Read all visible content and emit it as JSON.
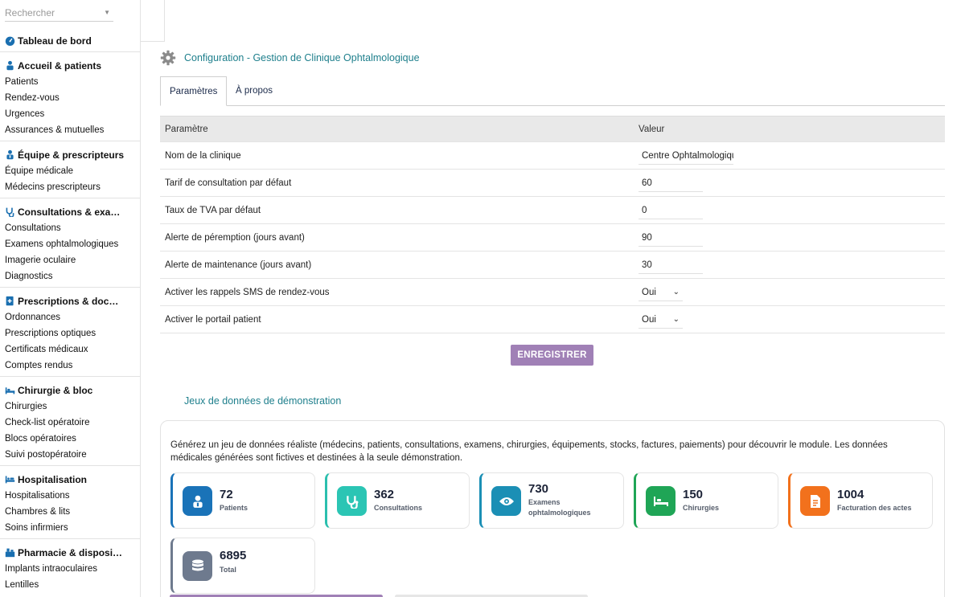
{
  "sidebar": {
    "search_placeholder": "Rechercher",
    "dashboard": "Tableau de bord",
    "sections": [
      {
        "title": "Accueil & patients",
        "items": [
          "Patients",
          "Rendez-vous",
          "Urgences",
          "Assurances & mutuelles"
        ]
      },
      {
        "title": "Équipe & prescripteurs",
        "items": [
          "Équipe médicale",
          "Médecins prescripteurs"
        ]
      },
      {
        "title": "Consultations & exa…",
        "items": [
          "Consultations",
          "Examens ophtalmologiques",
          "Imagerie oculaire",
          "Diagnostics"
        ]
      },
      {
        "title": "Prescriptions & doc…",
        "items": [
          "Ordonnances",
          "Prescriptions optiques",
          "Certificats médicaux",
          "Comptes rendus"
        ]
      },
      {
        "title": "Chirurgie & bloc",
        "items": [
          "Chirurgies",
          "Check-list opératoire",
          "Blocs opératoires",
          "Suivi postopératoire"
        ]
      },
      {
        "title": "Hospitalisation",
        "items": [
          "Hospitalisations",
          "Chambres & lits",
          "Soins infirmiers"
        ]
      },
      {
        "title": "Pharmacie & disposi…",
        "items": [
          "Implants intraoculaires",
          "Lentilles"
        ]
      }
    ]
  },
  "page": {
    "title": "Configuration - Gestion de Clinique Ophtalmologique",
    "tabs": [
      "Paramètres",
      "À propos"
    ]
  },
  "params": {
    "header": {
      "param": "Paramètre",
      "value": "Valeur"
    },
    "rows": [
      {
        "label": "Nom de la clinique",
        "value": "Centre Ophtalmologique"
      },
      {
        "label": "Tarif de consultation par défaut",
        "value": "60"
      },
      {
        "label": "Taux de TVA par défaut",
        "value": "0"
      },
      {
        "label": "Alerte de péremption (jours avant)",
        "value": "90"
      },
      {
        "label": "Alerte de maintenance (jours avant)",
        "value": "30"
      },
      {
        "label": "Activer les rappels SMS de rendez-vous",
        "value": "Oui"
      },
      {
        "label": "Activer le portail patient",
        "value": "Oui"
      }
    ],
    "save_label": "ENREGISTRER"
  },
  "demo": {
    "title": "Jeux de données de démonstration",
    "description": "Générez un jeu de données réaliste (médecins, patients, consultations, examens, chirurgies, équipements, stocks, factures, paiements) pour découvrir le module. Les données médicales générées sont fictives et destinées à la seule démonstration.",
    "stats": [
      {
        "value": "72",
        "label": "Patients",
        "icon": "patient-icon",
        "color": "#1a73b8"
      },
      {
        "value": "362",
        "label": "Consultations",
        "icon": "stethoscope-icon",
        "color": "#2bbfae"
      },
      {
        "value": "730",
        "label": "Examens ophtalmologiques",
        "icon": "eye-icon",
        "color": "#1b8fb5"
      },
      {
        "value": "150",
        "label": "Chirurgies",
        "icon": "bed-icon",
        "color": "#1fa556"
      },
      {
        "value": "1004",
        "label": "Facturation des actes",
        "icon": "invoice-icon",
        "color": "#f2711c"
      },
      {
        "value": "6895",
        "label": "Total",
        "icon": "database-icon",
        "color": "#6e7a8e"
      }
    ]
  }
}
